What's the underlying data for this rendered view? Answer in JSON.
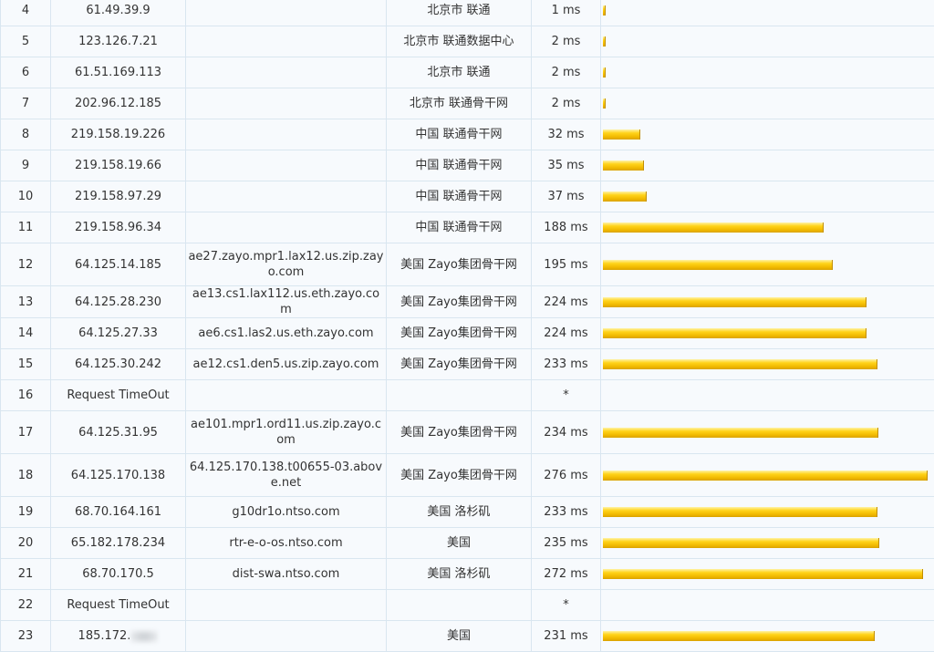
{
  "max_ms": 276,
  "rows": [
    {
      "hop": "4",
      "ip": "61.49.39.9",
      "host": "",
      "location": "北京市 联通",
      "time": "1 ms",
      "ms": 1
    },
    {
      "hop": "5",
      "ip": "123.126.7.21",
      "host": "",
      "location": "北京市 联通数据中心",
      "time": "2 ms",
      "ms": 2
    },
    {
      "hop": "6",
      "ip": "61.51.169.113",
      "host": "",
      "location": "北京市 联通",
      "time": "2 ms",
      "ms": 2
    },
    {
      "hop": "7",
      "ip": "202.96.12.185",
      "host": "",
      "location": "北京市 联通骨干网",
      "time": "2 ms",
      "ms": 2
    },
    {
      "hop": "8",
      "ip": "219.158.19.226",
      "host": "",
      "location": "中国 联通骨干网",
      "time": "32 ms",
      "ms": 32
    },
    {
      "hop": "9",
      "ip": "219.158.19.66",
      "host": "",
      "location": "中国 联通骨干网",
      "time": "35 ms",
      "ms": 35
    },
    {
      "hop": "10",
      "ip": "219.158.97.29",
      "host": "",
      "location": "中国 联通骨干网",
      "time": "37 ms",
      "ms": 37
    },
    {
      "hop": "11",
      "ip": "219.158.96.34",
      "host": "",
      "location": "中国 联通骨干网",
      "time": "188 ms",
      "ms": 188
    },
    {
      "hop": "12",
      "ip": "64.125.14.185",
      "host": "ae27.zayo.mpr1.lax12.us.zip.zayo.com",
      "location": "美国 Zayo集团骨干网",
      "time": "195 ms",
      "ms": 195
    },
    {
      "hop": "13",
      "ip": "64.125.28.230",
      "host": "ae13.cs1.lax112.us.eth.zayo.com",
      "location": "美国 Zayo集团骨干网",
      "time": "224 ms",
      "ms": 224
    },
    {
      "hop": "14",
      "ip": "64.125.27.33",
      "host": "ae6.cs1.las2.us.eth.zayo.com",
      "location": "美国 Zayo集团骨干网",
      "time": "224 ms",
      "ms": 224
    },
    {
      "hop": "15",
      "ip": "64.125.30.242",
      "host": "ae12.cs1.den5.us.zip.zayo.com",
      "location": "美国 Zayo集团骨干网",
      "time": "233 ms",
      "ms": 233
    },
    {
      "hop": "16",
      "ip": "Request TimeOut",
      "host": "",
      "location": "",
      "time": "*",
      "ms": 0
    },
    {
      "hop": "17",
      "ip": "64.125.31.95",
      "host": "ae101.mpr1.ord11.us.zip.zayo.com",
      "location": "美国 Zayo集团骨干网",
      "time": "234 ms",
      "ms": 234
    },
    {
      "hop": "18",
      "ip": "64.125.170.138",
      "host": "64.125.170.138.t00655-03.above.net",
      "location": "美国 Zayo集团骨干网",
      "time": "276 ms",
      "ms": 276
    },
    {
      "hop": "19",
      "ip": "68.70.164.161",
      "host": "g10dr1o.ntso.com",
      "location": "美国 洛杉矶",
      "time": "233 ms",
      "ms": 233
    },
    {
      "hop": "20",
      "ip": "65.182.178.234",
      "host": "rtr-e-o-os.ntso.com",
      "location": "美国",
      "time": "235 ms",
      "ms": 235
    },
    {
      "hop": "21",
      "ip": "68.70.170.5",
      "host": "dist-swa.ntso.com",
      "location": "美国 洛杉矶",
      "time": "272 ms",
      "ms": 272
    },
    {
      "hop": "22",
      "ip": "Request TimeOut",
      "host": "",
      "location": "",
      "time": "*",
      "ms": 0
    },
    {
      "hop": "23",
      "ip": "185.172.",
      "host": "",
      "location": "美国",
      "time": "231 ms",
      "ms": 231,
      "redacted": true
    }
  ]
}
